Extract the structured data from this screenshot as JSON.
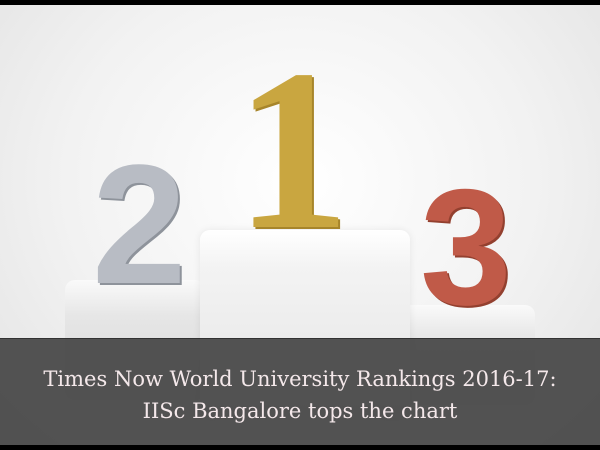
{
  "image": {
    "podium": {
      "first": "1",
      "second": "2",
      "third": "3",
      "colors": {
        "first": "#c9a640",
        "second": "#b8bcc4",
        "third": "#c05a48"
      }
    },
    "caption": {
      "line1": "Times Now World University Rankings 2016-17:",
      "line2": "IISc Bangalore tops the chart"
    }
  }
}
